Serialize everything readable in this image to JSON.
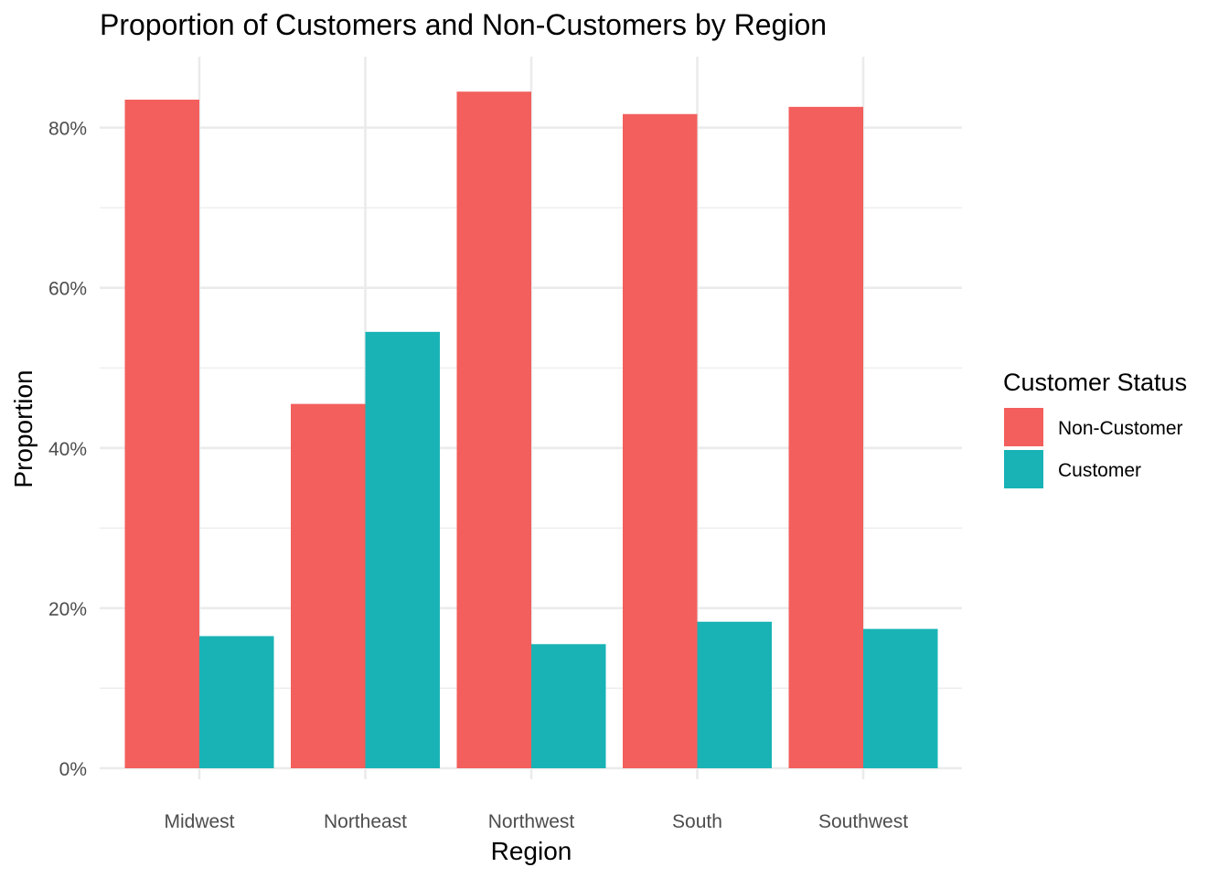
{
  "chart_data": {
    "type": "bar",
    "title": "Proportion of Customers and Non-Customers by Region",
    "xlabel": "Region",
    "ylabel": "Proportion",
    "categories": [
      "Midwest",
      "Northeast",
      "Northwest",
      "South",
      "Southwest"
    ],
    "series": [
      {
        "name": "Non-Customer",
        "color": "#F25F5C",
        "values": [
          0.835,
          0.455,
          0.845,
          0.817,
          0.826
        ]
      },
      {
        "name": "Customer",
        "color": "#19B3B6",
        "values": [
          0.165,
          0.545,
          0.155,
          0.183,
          0.174
        ]
      }
    ],
    "ylim": [
      0,
      0.89
    ],
    "yticks": [
      0,
      0.2,
      0.4,
      0.6,
      0.8
    ],
    "ytick_labels": [
      "0%",
      "20%",
      "40%",
      "60%",
      "80%"
    ],
    "grid": true,
    "legend": {
      "title": "Customer Status",
      "position": "right"
    }
  }
}
